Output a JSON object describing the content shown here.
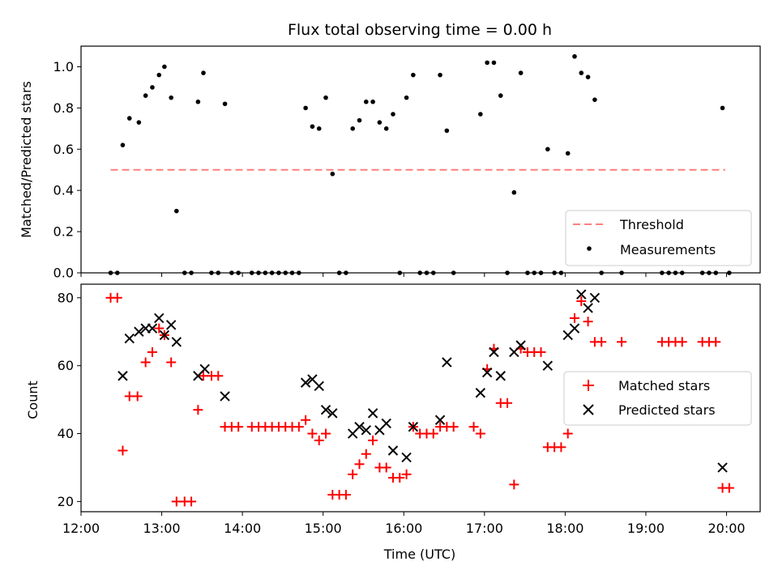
{
  "chart_data": [
    {
      "type": "scatter",
      "title": "Flux total observing time = 0.00 h",
      "xlabel": "",
      "ylabel": "Matched/Predicted stars",
      "xlim": [
        "12:00",
        "20:25"
      ],
      "ylim": [
        0.0,
        1.1
      ],
      "yticks": [
        "0.0",
        "0.2",
        "0.4",
        "0.6",
        "0.8",
        "1.0"
      ],
      "legend": {
        "position": "lower right",
        "entries": [
          "Threshold",
          "Measurements"
        ]
      },
      "threshold": {
        "name": "Threshold",
        "y": 0.5,
        "x_start": "12:22",
        "x_end": "19:59",
        "color": "#ff7f7f",
        "style": "dashed"
      },
      "series": [
        {
          "name": "Measurements",
          "marker": "dot",
          "color": "#000000",
          "points": [
            [
              "12:22",
              0.0
            ],
            [
              "12:27",
              0.0
            ],
            [
              "12:31",
              0.62
            ],
            [
              "12:36",
              0.75
            ],
            [
              "12:43",
              0.73
            ],
            [
              "12:48",
              0.86
            ],
            [
              "12:53",
              0.9
            ],
            [
              "12:58",
              0.96
            ],
            [
              "13:02",
              1.0
            ],
            [
              "13:07",
              0.85
            ],
            [
              "13:11",
              0.3
            ],
            [
              "13:17",
              0.0
            ],
            [
              "13:22",
              0.0
            ],
            [
              "13:27",
              0.83
            ],
            [
              "13:31",
              0.97
            ],
            [
              "13:37",
              0.0
            ],
            [
              "13:42",
              0.0
            ],
            [
              "13:47",
              0.82
            ],
            [
              "13:52",
              0.0
            ],
            [
              "13:57",
              0.0
            ],
            [
              "14:07",
              0.0
            ],
            [
              "14:12",
              0.0
            ],
            [
              "14:17",
              0.0
            ],
            [
              "14:22",
              0.0
            ],
            [
              "14:27",
              0.0
            ],
            [
              "14:32",
              0.0
            ],
            [
              "14:37",
              0.0
            ],
            [
              "14:42",
              0.0
            ],
            [
              "14:47",
              0.8
            ],
            [
              "14:52",
              0.71
            ],
            [
              "14:57",
              0.7
            ],
            [
              "15:02",
              0.85
            ],
            [
              "15:07",
              0.48
            ],
            [
              "15:12",
              0.0
            ],
            [
              "15:17",
              0.0
            ],
            [
              "15:22",
              0.7
            ],
            [
              "15:27",
              0.74
            ],
            [
              "15:32",
              0.83
            ],
            [
              "15:37",
              0.83
            ],
            [
              "15:42",
              0.73
            ],
            [
              "15:47",
              0.7
            ],
            [
              "15:52",
              0.77
            ],
            [
              "15:57",
              0.0
            ],
            [
              "16:02",
              0.85
            ],
            [
              "16:07",
              0.96
            ],
            [
              "16:12",
              0.0
            ],
            [
              "16:17",
              0.0
            ],
            [
              "16:22",
              0.0
            ],
            [
              "16:27",
              0.96
            ],
            [
              "16:32",
              0.69
            ],
            [
              "16:37",
              0.0
            ],
            [
              "16:57",
              0.77
            ],
            [
              "17:02",
              1.02
            ],
            [
              "17:07",
              1.02
            ],
            [
              "17:12",
              0.86
            ],
            [
              "17:17",
              0.0
            ],
            [
              "17:22",
              0.39
            ],
            [
              "17:27",
              0.97
            ],
            [
              "17:32",
              0.0
            ],
            [
              "17:37",
              0.0
            ],
            [
              "17:42",
              0.0
            ],
            [
              "17:47",
              0.6
            ],
            [
              "17:52",
              0.0
            ],
            [
              "17:57",
              0.0
            ],
            [
              "18:02",
              0.58
            ],
            [
              "18:07",
              1.05
            ],
            [
              "18:12",
              0.97
            ],
            [
              "18:17",
              0.95
            ],
            [
              "18:22",
              0.84
            ],
            [
              "18:27",
              0.0
            ],
            [
              "18:42",
              0.0
            ],
            [
              "19:12",
              0.0
            ],
            [
              "19:17",
              0.0
            ],
            [
              "19:22",
              0.0
            ],
            [
              "19:27",
              0.0
            ],
            [
              "19:42",
              0.0
            ],
            [
              "19:47",
              0.0
            ],
            [
              "19:52",
              0.0
            ],
            [
              "19:57",
              0.8
            ],
            [
              "20:02",
              0.0
            ]
          ]
        }
      ]
    },
    {
      "type": "scatter",
      "title": "",
      "xlabel": "Time (UTC)",
      "ylabel": "Count",
      "xlim": [
        "12:00",
        "20:25"
      ],
      "ylim": [
        17,
        84
      ],
      "xticks": [
        "12:00",
        "13:00",
        "14:00",
        "15:00",
        "16:00",
        "17:00",
        "18:00",
        "19:00",
        "20:00"
      ],
      "yticks": [
        "20",
        "40",
        "60",
        "80"
      ],
      "legend": {
        "position": "center right",
        "entries": [
          "Matched stars",
          "Predicted stars"
        ]
      },
      "series": [
        {
          "name": "Matched stars",
          "marker": "plus",
          "color": "#ff0000",
          "points": [
            [
              "12:22",
              80
            ],
            [
              "12:27",
              80
            ],
            [
              "12:31",
              35
            ],
            [
              "12:36",
              51
            ],
            [
              "12:42",
              51
            ],
            [
              "12:48",
              61
            ],
            [
              "12:53",
              64
            ],
            [
              "12:58",
              71
            ],
            [
              "13:02",
              69
            ],
            [
              "13:07",
              61
            ],
            [
              "13:11",
              20
            ],
            [
              "13:17",
              20
            ],
            [
              "13:22",
              20
            ],
            [
              "13:27",
              47
            ],
            [
              "13:31",
              57
            ],
            [
              "13:37",
              57
            ],
            [
              "13:42",
              57
            ],
            [
              "13:47",
              42
            ],
            [
              "13:52",
              42
            ],
            [
              "13:57",
              42
            ],
            [
              "14:07",
              42
            ],
            [
              "14:12",
              42
            ],
            [
              "14:17",
              42
            ],
            [
              "14:22",
              42
            ],
            [
              "14:27",
              42
            ],
            [
              "14:32",
              42
            ],
            [
              "14:37",
              42
            ],
            [
              "14:42",
              42
            ],
            [
              "14:47",
              44
            ],
            [
              "14:52",
              40
            ],
            [
              "14:57",
              38
            ],
            [
              "15:02",
              40
            ],
            [
              "15:07",
              22
            ],
            [
              "15:12",
              22
            ],
            [
              "15:17",
              22
            ],
            [
              "15:22",
              28
            ],
            [
              "15:27",
              31
            ],
            [
              "15:32",
              34
            ],
            [
              "15:37",
              38
            ],
            [
              "15:42",
              30
            ],
            [
              "15:47",
              30
            ],
            [
              "15:52",
              27
            ],
            [
              "15:57",
              27
            ],
            [
              "16:02",
              28
            ],
            [
              "16:07",
              42
            ],
            [
              "16:12",
              40
            ],
            [
              "16:17",
              40
            ],
            [
              "16:22",
              40
            ],
            [
              "16:27",
              42
            ],
            [
              "16:32",
              42
            ],
            [
              "16:37",
              42
            ],
            [
              "16:52",
              42
            ],
            [
              "16:57",
              40
            ],
            [
              "17:02",
              59
            ],
            [
              "17:07",
              65
            ],
            [
              "17:12",
              49
            ],
            [
              "17:17",
              49
            ],
            [
              "17:22",
              25
            ],
            [
              "17:27",
              65
            ],
            [
              "17:32",
              64
            ],
            [
              "17:37",
              64
            ],
            [
              "17:42",
              64
            ],
            [
              "17:47",
              36
            ],
            [
              "17:52",
              36
            ],
            [
              "17:57",
              36
            ],
            [
              "18:02",
              40
            ],
            [
              "18:07",
              74
            ],
            [
              "18:12",
              79
            ],
            [
              "18:17",
              73
            ],
            [
              "18:22",
              67
            ],
            [
              "18:27",
              67
            ],
            [
              "18:42",
              67
            ],
            [
              "19:12",
              67
            ],
            [
              "19:17",
              67
            ],
            [
              "19:22",
              67
            ],
            [
              "19:27",
              67
            ],
            [
              "19:42",
              67
            ],
            [
              "19:47",
              67
            ],
            [
              "19:52",
              67
            ],
            [
              "19:57",
              24
            ],
            [
              "20:02",
              24
            ]
          ]
        },
        {
          "name": "Predicted stars",
          "marker": "x",
          "color": "#000000",
          "points": [
            [
              "12:31",
              57
            ],
            [
              "12:36",
              68
            ],
            [
              "12:43",
              70
            ],
            [
              "12:48",
              71
            ],
            [
              "12:53",
              71
            ],
            [
              "12:58",
              74
            ],
            [
              "13:02",
              69
            ],
            [
              "13:07",
              72
            ],
            [
              "13:11",
              67
            ],
            [
              "13:27",
              57
            ],
            [
              "13:32",
              59
            ],
            [
              "13:47",
              51
            ],
            [
              "14:47",
              55
            ],
            [
              "14:52",
              56
            ],
            [
              "14:57",
              54
            ],
            [
              "15:02",
              47
            ],
            [
              "15:07",
              46
            ],
            [
              "15:22",
              40
            ],
            [
              "15:27",
              42
            ],
            [
              "15:32",
              41
            ],
            [
              "15:37",
              46
            ],
            [
              "15:42",
              41
            ],
            [
              "15:47",
              43
            ],
            [
              "15:52",
              35
            ],
            [
              "16:02",
              33
            ],
            [
              "16:07",
              42
            ],
            [
              "16:27",
              44
            ],
            [
              "16:32",
              61
            ],
            [
              "16:57",
              52
            ],
            [
              "17:02",
              58
            ],
            [
              "17:07",
              64
            ],
            [
              "17:12",
              57
            ],
            [
              "17:22",
              64
            ],
            [
              "17:27",
              66
            ],
            [
              "17:47",
              60
            ],
            [
              "18:02",
              69
            ],
            [
              "18:07",
              71
            ],
            [
              "18:12",
              81
            ],
            [
              "18:17",
              77
            ],
            [
              "18:22",
              80
            ],
            [
              "19:57",
              30
            ]
          ]
        }
      ]
    }
  ]
}
